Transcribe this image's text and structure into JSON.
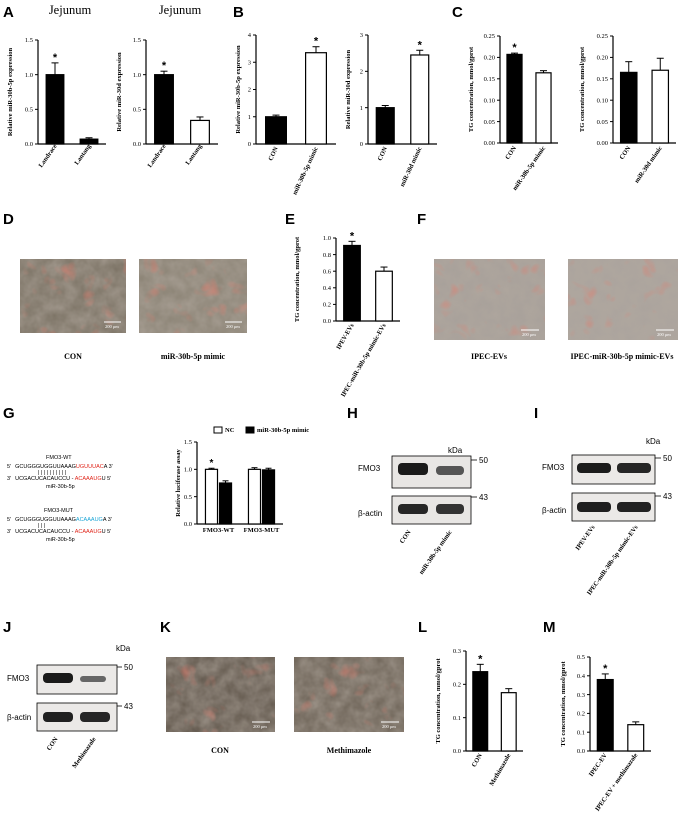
{
  "panel_labels": [
    "A",
    "B",
    "C",
    "D",
    "E",
    "F",
    "G",
    "H",
    "I",
    "J",
    "K",
    "L",
    "M"
  ],
  "scale_bar_label": "200 μm",
  "chart_data": [
    {
      "id": "A1",
      "type": "bar",
      "title": "Jejunum",
      "categories": [
        "Landrace",
        "Lantang"
      ],
      "values": [
        1.0,
        0.07
      ],
      "errors": [
        0.17,
        0.02
      ],
      "ylabel": "Relative miR-30b-5p expression",
      "ylim": [
        0,
        1.5
      ],
      "yticks": [
        "0.0",
        "0.5",
        "1.0",
        "1.5"
      ],
      "colors": [
        "#000000",
        "#000000"
      ],
      "star": "*"
    },
    {
      "id": "A2",
      "type": "bar",
      "title": "Jejunum",
      "categories": [
        "Landrace",
        "Lantang"
      ],
      "values": [
        1.0,
        0.34
      ],
      "errors": [
        0.05,
        0.05
      ],
      "ylabel": "Relative miR-30d expression",
      "ylim": [
        0,
        1.5
      ],
      "yticks": [
        "0.0",
        "0.5",
        "1.0",
        "1.5"
      ],
      "colors": [
        "#000000",
        "#ffffff"
      ],
      "star": "*"
    },
    {
      "id": "B1",
      "type": "bar",
      "categories": [
        "CON",
        "miR-30b-5p mimic"
      ],
      "values": [
        1.0,
        3.35
      ],
      "errors": [
        0.06,
        0.22
      ],
      "ylabel": "Relative miR-30b-5p expression",
      "ylim": [
        0,
        4
      ],
      "yticks": [
        "0",
        "1",
        "2",
        "3",
        "4"
      ],
      "colors": [
        "#000000",
        "#ffffff"
      ],
      "star": "*"
    },
    {
      "id": "B2",
      "type": "bar",
      "categories": [
        "CON",
        "miR-30d mimic"
      ],
      "values": [
        1.0,
        2.45
      ],
      "errors": [
        0.06,
        0.13
      ],
      "ylabel": "Relative miR-30d expression",
      "ylim": [
        0,
        3
      ],
      "yticks": [
        "0",
        "1",
        "2",
        "3"
      ],
      "colors": [
        "#000000",
        "#ffffff"
      ],
      "star": "*"
    },
    {
      "id": "C1",
      "type": "bar",
      "categories": [
        "CON",
        "miR-30b-5p mimic"
      ],
      "values": [
        0.207,
        0.164
      ],
      "errors": [
        0.003,
        0.005
      ],
      "ylabel": "TG concentration, mmol/gprot",
      "ylim": [
        0,
        0.25
      ],
      "yticks": [
        "0.00",
        "0.05",
        "0.10",
        "0.15",
        "0.20",
        "0.25"
      ],
      "colors": [
        "#000000",
        "#ffffff"
      ],
      "star": "*"
    },
    {
      "id": "C2",
      "type": "bar",
      "categories": [
        "CON",
        "miR-30d mimic"
      ],
      "values": [
        0.165,
        0.17
      ],
      "errors": [
        0.025,
        0.028
      ],
      "ylabel": "TG concentration, mmol/gprot",
      "ylim": [
        0,
        0.25
      ],
      "yticks": [
        "0.00",
        "0.05",
        "0.10",
        "0.15",
        "0.20",
        "0.25"
      ],
      "colors": [
        "#000000",
        "#ffffff"
      ],
      "star": ""
    },
    {
      "id": "E",
      "type": "bar",
      "categories": [
        "IPEV-EVs",
        "IPEC-miR-30b-5p mimic-EVs"
      ],
      "values": [
        0.91,
        0.6
      ],
      "errors": [
        0.05,
        0.05
      ],
      "ylabel": "TG concentration, mmol/gprot",
      "ylim": [
        0,
        1.0
      ],
      "yticks": [
        "0.0",
        "0.2",
        "0.4",
        "0.6",
        "0.8",
        "1.0"
      ],
      "colors": [
        "#000000",
        "#ffffff"
      ],
      "star": "*"
    },
    {
      "id": "G",
      "type": "bar",
      "groups": [
        "FMO3-WT",
        "FMO3-MUT"
      ],
      "series": [
        {
          "name": "NC",
          "values": [
            1.0,
            1.0
          ],
          "errors": [
            0.02,
            0.03
          ]
        },
        {
          "name": "miR-30b-5p mimic",
          "values": [
            0.75,
            0.99
          ],
          "errors": [
            0.04,
            0.03
          ]
        }
      ],
      "ylabel": "Relative luciferase assay",
      "ylim": [
        0,
        1.5
      ],
      "yticks": [
        "0.0",
        "0.5",
        "1.0",
        "1.5"
      ],
      "colors": [
        "#ffffff",
        "#000000"
      ],
      "star": "*"
    },
    {
      "id": "L",
      "type": "bar",
      "categories": [
        "CON",
        "Methimazole"
      ],
      "values": [
        0.238,
        0.175
      ],
      "errors": [
        0.022,
        0.012
      ],
      "ylabel": "TG concentration, mmol/gprot",
      "ylim": [
        0,
        0.3
      ],
      "yticks": [
        "0.0",
        "0.1",
        "0.2",
        "0.3"
      ],
      "colors": [
        "#000000",
        "#ffffff"
      ],
      "star": "*"
    },
    {
      "id": "M",
      "type": "bar",
      "categories": [
        "IPEC-EV",
        "IPEC-EV + methimazole"
      ],
      "values": [
        0.38,
        0.14
      ],
      "errors": [
        0.03,
        0.015
      ],
      "ylabel": "TG concentration, mmol/gprot",
      "ylim": [
        0,
        0.5
      ],
      "yticks": [
        "0.0",
        "0.1",
        "0.2",
        "0.3",
        "0.4",
        "0.5"
      ],
      "colors": [
        "#000000",
        "#ffffff"
      ],
      "star": "*"
    }
  ],
  "captions": {
    "D": [
      "CON",
      "miR-30b-5p mimic"
    ],
    "F": [
      "IPEC-EVs",
      "IPEC-miR-30b-5p mimic-EVs"
    ],
    "K": [
      "CON",
      "Methimazole"
    ]
  },
  "sequences": {
    "wt_title": "FMO3-WT",
    "wt_top_5": "5'",
    "wt_top_black": "GCUGGGUGGUUAAAG",
    "wt_top_red": "UGUUUAC",
    "wt_top_end": "A  3'",
    "wt_bottom_3": "3'",
    "wt_bottom_black": "UCGACUCACAUCCU - ",
    "wt_bottom_red": "ACAAAUG",
    "wt_bottom_end": "U  5'",
    "wt_mirna": "miR-30b-5p",
    "mut_title": "FMO3-MUT",
    "mut_top_5": "5'",
    "mut_top_black": "GCUGGGUGGUUAAAG",
    "mut_top_blue": "ACAAAUG",
    "mut_top_end": "A  3'",
    "mut_bottom_3": "3'",
    "mut_bottom_black": "UCGACUCACAUCCU - ",
    "mut_bottom_red": "ACAAAUG",
    "mut_bottom_end": "U  5'",
    "mut_mirna": "miR-30b-5p"
  },
  "blots": {
    "H": {
      "kda": "kDa",
      "top_label": "FMO3",
      "bottom_label": "β-actin",
      "top_marker": "50",
      "bottom_marker": "43",
      "lanes": [
        "CON",
        "miR-30b-5p mimic"
      ]
    },
    "I": {
      "kda": "kDa",
      "top_label": "FMO3",
      "bottom_label": "β-actin",
      "top_marker": "50",
      "bottom_marker": "43",
      "lanes": [
        "IPEV-EVs",
        "IPEC-miR-30b-5p mimic-EVs"
      ]
    },
    "J": {
      "kda": "kDa",
      "top_label": "FMO3",
      "bottom_label": "β-actin",
      "top_marker": "50",
      "bottom_marker": "43",
      "lanes": [
        "CON",
        "Methimazole"
      ]
    }
  }
}
